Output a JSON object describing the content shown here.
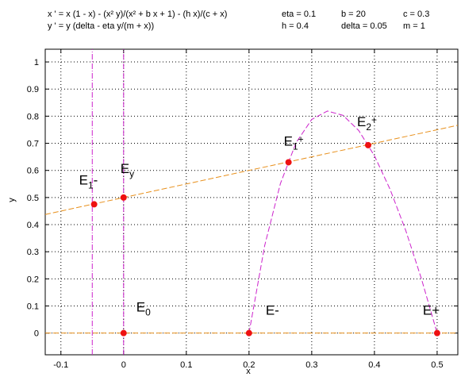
{
  "chart_data": {
    "type": "line",
    "equations": [
      "x ' = x (1 - x) - (x² y)/(x² + b x + 1) - (h x)/(c + x)",
      "y ' = y (delta - eta y/(m + x))"
    ],
    "parameters": [
      [
        "eta = 0.1",
        "b = 20",
        "c = 0.3"
      ],
      [
        "h = 0.4",
        "delta = 0.05",
        "m = 1"
      ]
    ],
    "x_label": "x",
    "y_label": "y",
    "xlim": [
      -0.125,
      0.533
    ],
    "ylim": [
      -0.08,
      1.047
    ],
    "xticks": [
      -0.1,
      0,
      0.1,
      0.2,
      0.3,
      0.4,
      0.5
    ],
    "yticks": [
      0,
      0.1,
      0.2,
      0.3,
      0.4,
      0.5,
      0.6,
      0.7,
      0.8,
      0.9,
      1
    ],
    "grid": true,
    "series": [
      {
        "color": "#e8901c",
        "linestyle": "--",
        "x": [
          -0.125,
          0.533
        ],
        "values": [
          0.4375,
          0.7665
        ]
      },
      {
        "color": "#e8901c",
        "linestyle": "--",
        "x": [
          -0.125,
          0.533
        ],
        "values": [
          0,
          0
        ]
      },
      {
        "color": "#cc22cc",
        "linestyle": "-.",
        "x": [
          0,
          0
        ],
        "values": [
          -0.08,
          1.047
        ]
      },
      {
        "color": "#cc22cc",
        "linestyle": "-.",
        "x": [
          -0.05,
          -0.05
        ],
        "values": [
          -0.08,
          1.047
        ]
      },
      {
        "color": "#cc22cc",
        "linestyle": "--",
        "x": [
          0.2,
          0.225,
          0.25,
          0.275,
          0.3,
          0.325,
          0.35,
          0.375,
          0.4,
          0.425,
          0.45,
          0.475,
          0.5
        ],
        "values": [
          0,
          0.323,
          0.551,
          0.702,
          0.788,
          0.819,
          0.803,
          0.747,
          0.654,
          0.53,
          0.378,
          0.2,
          0
        ]
      }
    ],
    "points": {
      "color": "#ee1111",
      "x": [
        -0.047,
        0,
        0.263,
        0.39,
        0,
        0.2,
        0.5
      ],
      "values": [
        0.475,
        0.5,
        0.63,
        0.693,
        0,
        0,
        0
      ],
      "labels": [
        {
          "base": "E",
          "sub": "1",
          "tail": "-"
        },
        {
          "base": "E",
          "sub": "y"
        },
        {
          "base": "E",
          "sub": "1",
          "tail": "+"
        },
        {
          "base": "E",
          "sub": "2",
          "tail": "+"
        },
        {
          "base": "E",
          "sub": "0"
        },
        {
          "base": "E-"
        },
        {
          "base": "E+"
        }
      ]
    }
  }
}
